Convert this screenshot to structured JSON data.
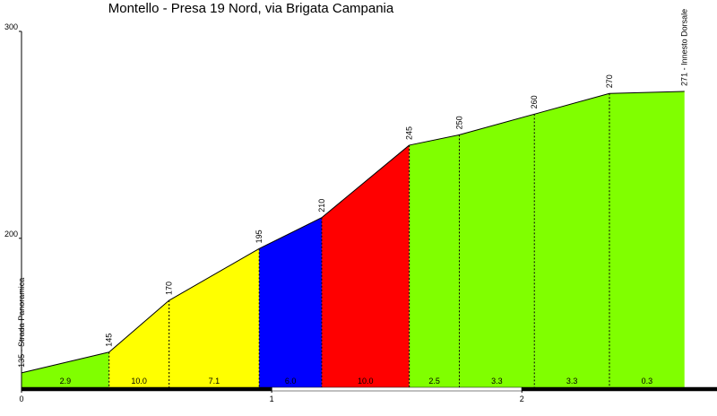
{
  "chart_data": {
    "type": "elevation-profile",
    "title": "Montello - Presa 19 Nord, via Brigata Campania",
    "x": [
      0,
      0.35,
      0.59,
      0.95,
      1.2,
      1.55,
      1.75,
      2.05,
      2.35,
      2.65
    ],
    "values": [
      135,
      145,
      170,
      195,
      210,
      245,
      250,
      260,
      270,
      271
    ],
    "value_labels": [
      "135 - Strada Panoramica",
      "145",
      "170",
      "195",
      "210",
      "245",
      "250",
      "260",
      "270",
      "271 - Innesto Dorsale"
    ],
    "gradients": [
      2.9,
      10,
      7.1,
      6,
      10,
      2.5,
      3.3,
      3.3,
      0.3
    ],
    "gradient_labels": [
      "2.9",
      "10.0",
      "7.1",
      "6.0",
      "10.0",
      "2.5",
      "3.3",
      "3.3",
      "0.3"
    ],
    "segment_colors": [
      "#80ff00",
      "#ffff00",
      "#ffff00",
      "#0000ff",
      "#ff0000",
      "#80ff00",
      "#80ff00",
      "#80ff00",
      "#80ff00"
    ],
    "xlim": [
      0,
      2.78
    ],
    "xticks": [
      0,
      1,
      2
    ],
    "ylim": [
      128,
      300
    ],
    "yticks": [
      200,
      300
    ]
  }
}
